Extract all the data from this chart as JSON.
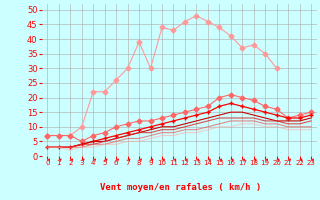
{
  "x": [
    0,
    1,
    2,
    3,
    4,
    5,
    6,
    7,
    8,
    9,
    10,
    11,
    12,
    13,
    14,
    15,
    16,
    17,
    18,
    19,
    20,
    21,
    22,
    23
  ],
  "series": [
    {
      "color": "#ff9999",
      "alpha": 1.0,
      "lw": 0.8,
      "marker": "D",
      "markersize": 2.5,
      "y": [
        7,
        7,
        7,
        10,
        22,
        22,
        26,
        30,
        39,
        30,
        44,
        43,
        46,
        48,
        46,
        44,
        41,
        37,
        38,
        35,
        30,
        null,
        null,
        null
      ]
    },
    {
      "color": "#ff6666",
      "alpha": 1.0,
      "lw": 0.8,
      "marker": "D",
      "markersize": 2.5,
      "y": [
        7,
        7,
        7,
        5,
        7,
        8,
        10,
        11,
        12,
        12,
        13,
        14,
        15,
        16,
        17,
        20,
        21,
        20,
        19,
        17,
        16,
        13,
        14,
        15
      ]
    },
    {
      "color": "#ff0000",
      "alpha": 1.0,
      "lw": 0.9,
      "marker": "+",
      "markersize": 3.5,
      "y": [
        3,
        3,
        3,
        4,
        5,
        6,
        7,
        8,
        9,
        10,
        11,
        12,
        13,
        14,
        15,
        17,
        18,
        17,
        16,
        15,
        14,
        13,
        13,
        14
      ]
    },
    {
      "color": "#cc0000",
      "alpha": 1.0,
      "lw": 0.8,
      "marker": null,
      "markersize": 0,
      "y": [
        3,
        3,
        3,
        4,
        5,
        5,
        6,
        7,
        8,
        9,
        10,
        10,
        11,
        12,
        13,
        14,
        15,
        15,
        14,
        13,
        12,
        12,
        12,
        13
      ]
    },
    {
      "color": "#dd2222",
      "alpha": 0.8,
      "lw": 0.8,
      "marker": null,
      "markersize": 0,
      "y": [
        3,
        3,
        3,
        4,
        4,
        5,
        6,
        7,
        8,
        8,
        9,
        9,
        10,
        11,
        12,
        13,
        13,
        13,
        13,
        12,
        12,
        11,
        11,
        12
      ]
    },
    {
      "color": "#ee5555",
      "alpha": 0.7,
      "lw": 0.8,
      "marker": null,
      "markersize": 0,
      "y": [
        3,
        3,
        3,
        3,
        4,
        4,
        5,
        6,
        6,
        7,
        8,
        8,
        9,
        9,
        10,
        11,
        12,
        12,
        12,
        11,
        11,
        10,
        10,
        10
      ]
    },
    {
      "color": "#ffaaaa",
      "alpha": 0.6,
      "lw": 0.8,
      "marker": null,
      "markersize": 0,
      "y": [
        3,
        3,
        2,
        3,
        3,
        4,
        4,
        5,
        5,
        6,
        7,
        7,
        8,
        8,
        9,
        10,
        10,
        11,
        11,
        10,
        10,
        9,
        9,
        9
      ]
    }
  ],
  "xlabel": "Vent moyen/en rafales ( km/h )",
  "xlim": [
    -0.5,
    23.5
  ],
  "ylim": [
    0,
    52
  ],
  "yticks": [
    0,
    5,
    10,
    15,
    20,
    25,
    30,
    35,
    40,
    45,
    50
  ],
  "xticks": [
    0,
    1,
    2,
    3,
    4,
    5,
    6,
    7,
    8,
    9,
    10,
    11,
    12,
    13,
    14,
    15,
    16,
    17,
    18,
    19,
    20,
    21,
    22,
    23
  ],
  "bg_color": "#ccffff",
  "grid_color": "#aaaaaa",
  "arrow_color": "#ff0000",
  "xlabel_color": "#ff0000",
  "tick_color": "#ff0000",
  "xlabel_fontsize": 6.5,
  "ytick_fontsize": 6,
  "xtick_fontsize": 5
}
